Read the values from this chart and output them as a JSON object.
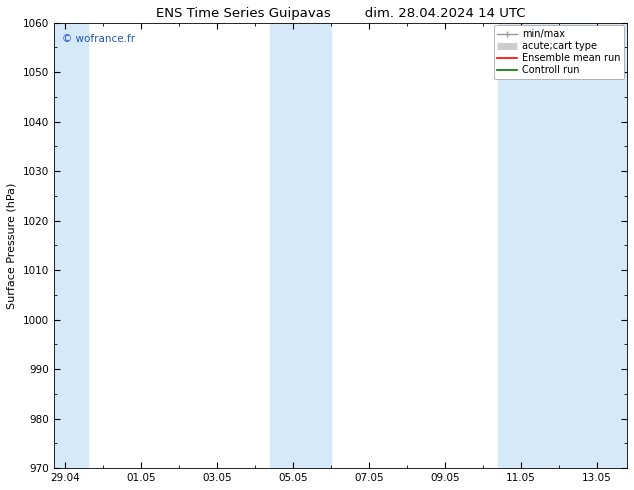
{
  "title_left": "ENS Time Series Guipavas",
  "title_right": "dim. 28.04.2024 14 UTC",
  "ylabel": "Surface Pressure (hPa)",
  "ylim": [
    970,
    1060
  ],
  "yticks": [
    970,
    980,
    990,
    1000,
    1010,
    1020,
    1030,
    1040,
    1050,
    1060
  ],
  "xtick_labels": [
    "29.04",
    "01.05",
    "03.05",
    "05.05",
    "07.05",
    "09.05",
    "11.05",
    "13.05"
  ],
  "xtick_positions": [
    0,
    2,
    4,
    6,
    8,
    10,
    12,
    14
  ],
  "xlim": [
    -0.3,
    14.8
  ],
  "background_color": "#ffffff",
  "plot_bg_color": "#ffffff",
  "shade_color": "#d6e9f8",
  "shade_regions": [
    {
      "x_start": -0.3,
      "x_end": 0.6
    },
    {
      "x_start": 5.4,
      "x_end": 7.0
    },
    {
      "x_start": 11.4,
      "x_end": 14.8
    }
  ],
  "watermark_text": "© wofrance.fr",
  "watermark_color": "#2255bb",
  "legend_entries": [
    {
      "label": "min/max",
      "color": "#999999",
      "lw": 1.0,
      "ls": "-",
      "style": "errorbar"
    },
    {
      "label": "acute;cart type",
      "color": "#cccccc",
      "lw": 5.0,
      "ls": "-",
      "style": "thick"
    },
    {
      "label": "Ensemble mean run",
      "color": "#ff0000",
      "lw": 1.2,
      "ls": "-",
      "style": "line"
    },
    {
      "label": "Controll run",
      "color": "#007700",
      "lw": 1.2,
      "ls": "-",
      "style": "line"
    }
  ],
  "title_fontsize": 9.5,
  "axis_label_fontsize": 8,
  "tick_fontsize": 7.5,
  "legend_fontsize": 7.0,
  "watermark_fontsize": 7.5
}
